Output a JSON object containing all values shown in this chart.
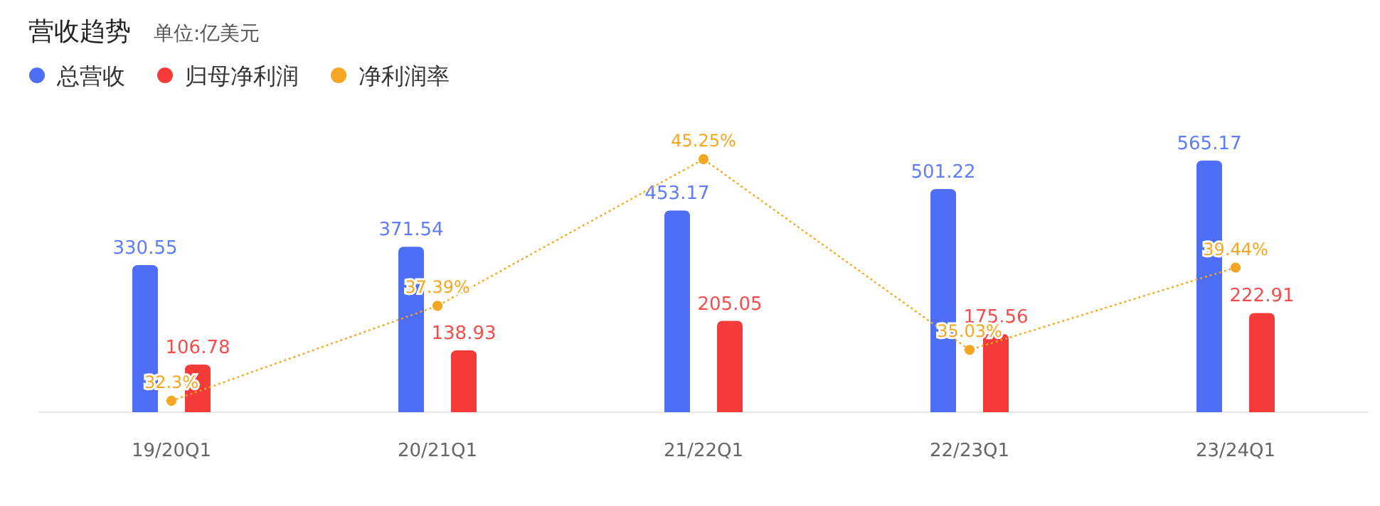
{
  "chart_data": {
    "type": "bar",
    "title": "营收趋势",
    "subtitle": "单位:亿美元",
    "categories": [
      "19/20Q1",
      "20/21Q1",
      "21/22Q1",
      "22/23Q1",
      "23/24Q1"
    ],
    "series": [
      {
        "name": "总营收",
        "color": "#4f6ef7",
        "values": [
          330.55,
          371.54,
          453.17,
          501.22,
          565.17
        ]
      },
      {
        "name": "归母净利润",
        "color": "#f53a3a",
        "values": [
          106.78,
          138.93,
          205.05,
          175.56,
          222.91
        ]
      },
      {
        "name": "净利润率",
        "type": "line",
        "axis": "y2",
        "color": "#f5a623",
        "values": [
          32.3,
          37.39,
          45.25,
          35.03,
          39.44
        ],
        "value_labels": [
          "32.3%",
          "37.39%",
          "45.25%",
          "35.03%",
          "39.44%"
        ],
        "marker": "circle",
        "line_style": "dotted"
      }
    ],
    "data_labels": true,
    "legend": "top left",
    "tick_labels": "x"
  }
}
